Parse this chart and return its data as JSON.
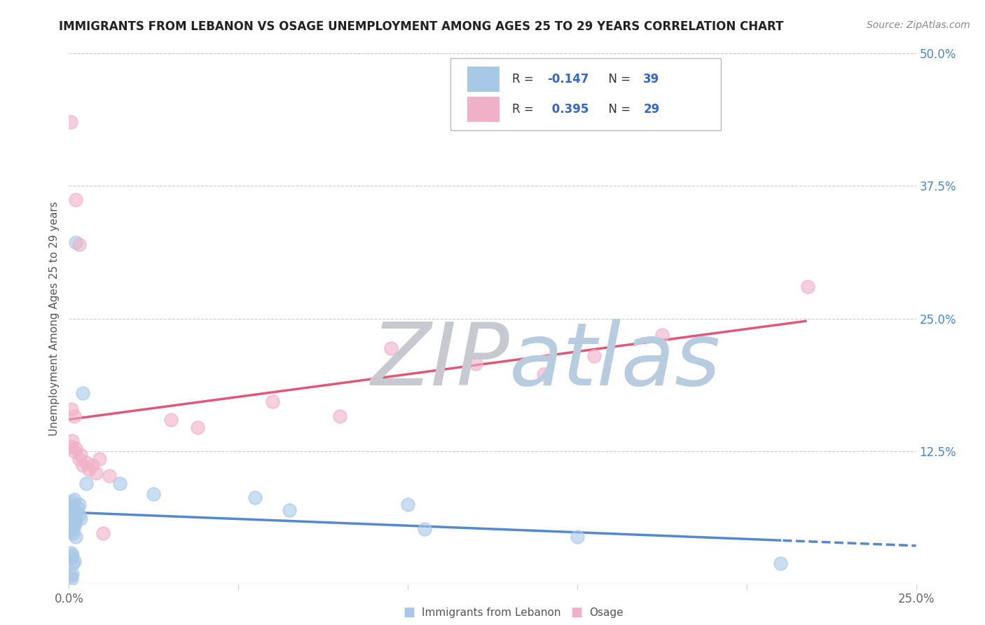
{
  "title": "IMMIGRANTS FROM LEBANON VS OSAGE UNEMPLOYMENT AMONG AGES 25 TO 29 YEARS CORRELATION CHART",
  "source": "Source: ZipAtlas.com",
  "ylabel": "Unemployment Among Ages 25 to 29 years",
  "r_lebanon": -0.147,
  "n_lebanon": 39,
  "r_osage": 0.395,
  "n_osage": 29,
  "xlim": [
    0.0,
    0.25
  ],
  "ylim": [
    0.0,
    0.5
  ],
  "yticks": [
    0.0,
    0.125,
    0.25,
    0.375,
    0.5
  ],
  "ytick_labels": [
    "",
    "12.5%",
    "25.0%",
    "37.5%",
    "50.0%"
  ],
  "xticks": [
    0.0,
    0.05,
    0.1,
    0.15,
    0.2,
    0.25
  ],
  "xtick_labels": [
    "0.0%",
    "",
    "",
    "",
    "",
    "25.0%"
  ],
  "color_lebanon": "#a8c8e8",
  "color_osage": "#f0b0c8",
  "line_color_lebanon": "#5588cc",
  "line_color_osage": "#e05878",
  "bg_color": "#ffffff",
  "watermark_zip_color": "#c8c8d0",
  "watermark_atlas_color": "#b8cce0",
  "title_fontsize": 12,
  "scatter_lebanon": [
    [
      0.0005,
      0.075
    ],
    [
      0.001,
      0.078
    ],
    [
      0.0012,
      0.072
    ],
    [
      0.0015,
      0.08
    ],
    [
      0.0008,
      0.068
    ],
    [
      0.001,
      0.065
    ],
    [
      0.0012,
      0.062
    ],
    [
      0.0015,
      0.07
    ],
    [
      0.0018,
      0.058
    ],
    [
      0.002,
      0.06
    ],
    [
      0.002,
      0.068
    ],
    [
      0.0025,
      0.072
    ],
    [
      0.003,
      0.075
    ],
    [
      0.003,
      0.065
    ],
    [
      0.0035,
      0.062
    ],
    [
      0.0008,
      0.05
    ],
    [
      0.001,
      0.052
    ],
    [
      0.0012,
      0.048
    ],
    [
      0.0015,
      0.055
    ],
    [
      0.002,
      0.045
    ],
    [
      0.0005,
      0.03
    ],
    [
      0.0008,
      0.025
    ],
    [
      0.001,
      0.028
    ],
    [
      0.0012,
      0.02
    ],
    [
      0.0015,
      0.022
    ],
    [
      0.0005,
      0.008
    ],
    [
      0.0008,
      0.005
    ],
    [
      0.001,
      0.01
    ],
    [
      0.002,
      0.322
    ],
    [
      0.004,
      0.18
    ],
    [
      0.005,
      0.095
    ],
    [
      0.015,
      0.095
    ],
    [
      0.025,
      0.085
    ],
    [
      0.055,
      0.082
    ],
    [
      0.065,
      0.07
    ],
    [
      0.1,
      0.075
    ],
    [
      0.105,
      0.052
    ],
    [
      0.15,
      0.045
    ],
    [
      0.21,
      0.02
    ]
  ],
  "scatter_osage": [
    [
      0.0005,
      0.435
    ],
    [
      0.002,
      0.362
    ],
    [
      0.003,
      0.32
    ],
    [
      0.0008,
      0.165
    ],
    [
      0.0015,
      0.158
    ],
    [
      0.0008,
      0.13
    ],
    [
      0.001,
      0.135
    ],
    [
      0.0015,
      0.125
    ],
    [
      0.002,
      0.128
    ],
    [
      0.003,
      0.118
    ],
    [
      0.0035,
      0.122
    ],
    [
      0.004,
      0.112
    ],
    [
      0.005,
      0.115
    ],
    [
      0.006,
      0.108
    ],
    [
      0.007,
      0.112
    ],
    [
      0.008,
      0.105
    ],
    [
      0.009,
      0.118
    ],
    [
      0.01,
      0.048
    ],
    [
      0.012,
      0.102
    ],
    [
      0.03,
      0.155
    ],
    [
      0.038,
      0.148
    ],
    [
      0.06,
      0.172
    ],
    [
      0.08,
      0.158
    ],
    [
      0.095,
      0.222
    ],
    [
      0.12,
      0.208
    ],
    [
      0.14,
      0.198
    ],
    [
      0.155,
      0.215
    ],
    [
      0.175,
      0.235
    ],
    [
      0.218,
      0.28
    ]
  ]
}
